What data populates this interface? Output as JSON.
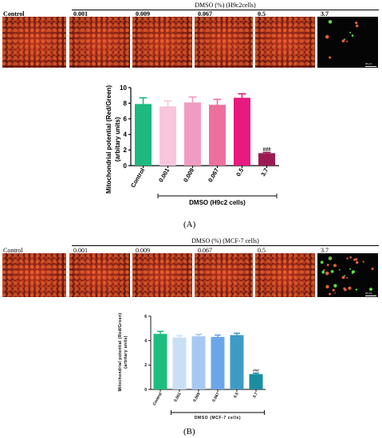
{
  "panel_a": {
    "group_header": "DMSO (%) (H9c2cells)",
    "micro_labels": [
      "Control",
      "0.001",
      "0.009",
      "0.067",
      "0.5",
      "3.7"
    ],
    "scale_text": "20 µm",
    "letter": "(A)"
  },
  "panel_b": {
    "group_header": "DMSO (%) (MCF-7 cells)",
    "micro_labels": [
      "Control",
      "0.001",
      "0.009",
      "0.067",
      "0.5",
      "3.7"
    ],
    "scale_text": "20 µm",
    "letter": "(B)"
  },
  "chart_data": [
    {
      "type": "bar",
      "categories": [
        "Control",
        "0.001",
        "0.009",
        "0.067",
        "0.5",
        "3.7"
      ],
      "values": [
        7.9,
        7.6,
        8.1,
        7.8,
        8.7,
        1.6
      ],
      "errors": [
        0.8,
        0.7,
        0.7,
        0.7,
        0.5,
        0.1
      ],
      "colors": [
        "#1db980",
        "#f8c6dc",
        "#f29bc2",
        "#ec6f9d",
        "#e8197f",
        "#9b1a52"
      ],
      "ylabel_line1": "Mitochondrial potential (Red/Green)",
      "ylabel_line2": "(arbitary units)",
      "ylim": [
        0,
        10
      ],
      "yticks": [
        0,
        2,
        4,
        6,
        8,
        10
      ],
      "bracket_label": "DMSO (H9c2 cells)",
      "annotation": "###",
      "annotation_index": 5
    },
    {
      "type": "bar",
      "categories": [
        "Control",
        "0.001",
        "0.009",
        "0.067",
        "0.5",
        "3.7"
      ],
      "values": [
        4.55,
        4.25,
        4.35,
        4.3,
        4.45,
        1.25
      ],
      "errors": [
        0.2,
        0.15,
        0.15,
        0.15,
        0.15,
        0.08
      ],
      "colors": [
        "#1ebd7f",
        "#c9dff5",
        "#a6c8f2",
        "#6ba6ea",
        "#3e9cc4",
        "#1a8ea0"
      ],
      "ylabel_line1": "Mitochondrial potential (Red/Green)",
      "ylabel_line2": "(arbitary units)",
      "ylim": [
        0,
        6
      ],
      "yticks": [
        0,
        2,
        4,
        6
      ],
      "bracket_label": "DMSO (MCF-7 cells)",
      "annotation": "###",
      "annotation_index": 5
    }
  ]
}
